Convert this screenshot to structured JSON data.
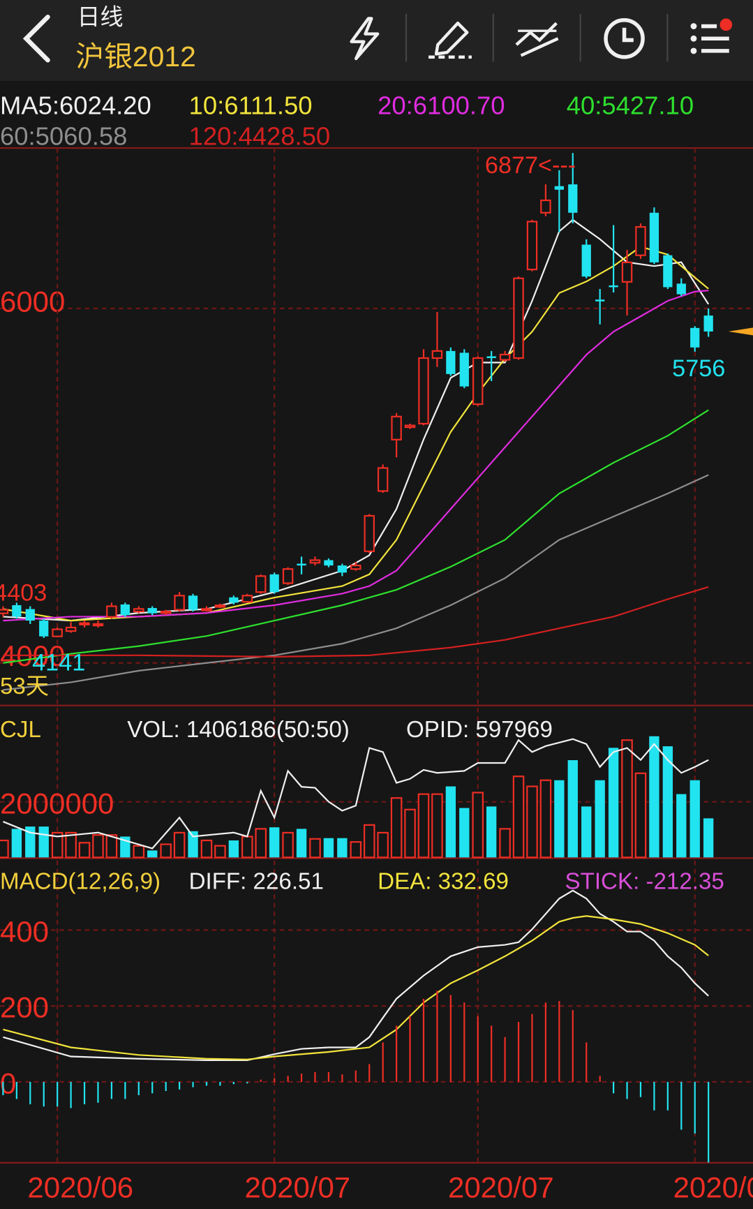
{
  "header": {
    "period": "日线",
    "symbol": "沪银2012"
  },
  "chart_data": [
    {
      "type": "candlestick",
      "categories": [
        null,
        null,
        null,
        null,
        "2020/06",
        null,
        null,
        null,
        null,
        null,
        null,
        null,
        null,
        null,
        null,
        null,
        null,
        null,
        null,
        null,
        "2020/07",
        null,
        null,
        null,
        null,
        null,
        null,
        null,
        null,
        null,
        null,
        null,
        null,
        null,
        null,
        "2020/07",
        null,
        null,
        null,
        null,
        null,
        null,
        null,
        null,
        null,
        null,
        null,
        null,
        null,
        null,
        null,
        "2020/0",
        null
      ],
      "open": [
        4280,
        4326,
        4304,
        4239,
        4150,
        4180,
        4220,
        4215,
        4260,
        4330,
        4290,
        4310,
        4285,
        4300,
        4380,
        4300,
        4320,
        4370,
        4345,
        4400,
        4500,
        4450,
        4560,
        4565,
        4580,
        4550,
        4530,
        4630,
        4970,
        5260,
        5330,
        5350,
        5720,
        5760,
        5750,
        5460,
        5730,
        5710,
        5720,
        6220,
        6540,
        6690,
        6700,
        6360,
        6050,
        6130,
        6150,
        6300,
        6540,
        6300,
        6140,
        5890,
        5960
      ],
      "close": [
        4300,
        4261,
        4239,
        4150,
        4190,
        4200,
        4225,
        4220,
        4320,
        4270,
        4305,
        4280,
        4290,
        4380,
        4300,
        4305,
        4325,
        4340,
        4380,
        4490,
        4400,
        4530,
        4550,
        4580,
        4550,
        4510,
        4550,
        4830,
        5100,
        5390,
        5340,
        5720,
        5760,
        5630,
        5560,
        5720,
        5720,
        5740,
        6170,
        6490,
        6610,
        6670,
        6540,
        6180,
        6040,
        6120,
        6260,
        6460,
        6260,
        6120,
        6080,
        5780,
        5870
      ],
      "high": [
        4320,
        4340,
        4320,
        4250,
        4200,
        4230,
        4240,
        4240,
        4340,
        4340,
        4320,
        4320,
        4300,
        4400,
        4390,
        4320,
        4335,
        4380,
        4390,
        4500,
        4510,
        4540,
        4600,
        4600,
        4590,
        4560,
        4570,
        4840,
        5120,
        5410,
        5350,
        5770,
        5980,
        5780,
        5770,
        5730,
        5760,
        5760,
        6180,
        6500,
        6700,
        6780,
        6877,
        6390,
        6110,
        6470,
        6330,
        6480,
        6570,
        6310,
        6170,
        5900,
        6000
      ],
      "low": [
        4260,
        4250,
        4220,
        4141,
        4145,
        4170,
        4200,
        4200,
        4250,
        4260,
        4280,
        4270,
        4270,
        4290,
        4290,
        4290,
        4310,
        4330,
        4340,
        4390,
        4390,
        4440,
        4500,
        4550,
        4540,
        4490,
        4520,
        4620,
        4960,
        5160,
        5320,
        5340,
        5670,
        5620,
        5550,
        5450,
        5590,
        5700,
        5710,
        6210,
        6520,
        6430,
        6480,
        6170,
        5910,
        6090,
        5960,
        6280,
        6250,
        6110,
        6070,
        5756,
        5840
      ],
      "up_color": "#ee2e24",
      "down_color": "#22e3f0",
      "marker_color": "#f5a623",
      "ylim": [
        3760,
        6905
      ],
      "yticks": [
        4000,
        6000
      ],
      "grid": true,
      "period": "53天",
      "series": [
        {
          "name": "MA5:6024.20",
          "color": "#f0f0f0",
          "x": [
            0,
            5,
            10,
            15,
            20,
            25,
            27,
            29,
            31,
            33,
            35,
            37,
            39,
            41,
            42,
            44,
            46,
            48,
            50,
            52
          ],
          "values": [
            4261,
            4239,
            4282,
            4304,
            4400,
            4521,
            4608,
            4869,
            5261,
            5609,
            5695,
            5695,
            6043,
            6435,
            6500,
            6391,
            6261,
            6239,
            6261,
            6024
          ]
        },
        {
          "name": "10:6111.50",
          "color": "#f2e43c",
          "x": [
            0,
            5,
            10,
            15,
            20,
            25,
            27,
            29,
            31,
            33,
            35,
            37,
            39,
            41,
            43,
            45,
            47,
            49,
            51,
            52
          ],
          "values": [
            4304,
            4239,
            4261,
            4282,
            4369,
            4434,
            4500,
            4695,
            5000,
            5304,
            5522,
            5717,
            5869,
            6087,
            6152,
            6239,
            6348,
            6304,
            6174,
            6111
          ]
        },
        {
          "name": "20:6100.70",
          "color": "#e02ce0",
          "x": [
            0,
            5,
            10,
            15,
            20,
            25,
            27,
            29,
            31,
            33,
            35,
            37,
            39,
            41,
            43,
            45,
            47,
            49,
            51,
            52
          ],
          "values": [
            4239,
            4261,
            4261,
            4282,
            4326,
            4391,
            4434,
            4521,
            4695,
            4869,
            5043,
            5217,
            5391,
            5565,
            5739,
            5869,
            5956,
            6043,
            6095,
            6101
          ]
        },
        {
          "name": "40:5427.10",
          "color": "#2ee02e",
          "x": [
            0,
            5,
            10,
            15,
            20,
            25,
            29,
            33,
            37,
            41,
            45,
            49,
            52
          ],
          "values": [
            4000,
            4052,
            4095,
            4152,
            4239,
            4326,
            4413,
            4543,
            4695,
            4956,
            5130,
            5282,
            5427
          ]
        },
        {
          "name": "60:5060.58",
          "color": "#8e8e8e",
          "x": [
            0,
            5,
            10,
            15,
            20,
            25,
            29,
            33,
            37,
            41,
            45,
            49,
            52
          ],
          "values": [
            3848,
            3891,
            3956,
            4000,
            4043,
            4109,
            4196,
            4326,
            4478,
            4695,
            4826,
            4956,
            5061
          ]
        },
        {
          "name": "120:4428.50",
          "color": "#d42020",
          "x": [
            0,
            10,
            20,
            27,
            33,
            37,
            41,
            45,
            49,
            52
          ],
          "values": [
            4043,
            4043,
            4035,
            4043,
            4087,
            4130,
            4196,
            4261,
            4360,
            4429
          ]
        }
      ],
      "annotations": [
        {
          "text": "6877<---",
          "value": 6877,
          "index": 42,
          "color": "#ee2e24"
        },
        {
          "text": "5756",
          "value": 5756,
          "index": 51,
          "color": "#22e3f0"
        },
        {
          "text": "4141",
          "value": 4141,
          "index": 3,
          "color": "#22e3f0"
        },
        {
          "text": "4403",
          "value": 4403,
          "color": "#ee2e24"
        }
      ]
    },
    {
      "type": "bar",
      "title": "CJL",
      "title_color": "#f2d03c",
      "ylim": [
        0,
        5190000
      ],
      "yticks": [
        2000000
      ],
      "y2lim": [
        500000,
        645000
      ],
      "grid": true,
      "series": [
        {
          "name": "VOL: 1406186(50:50)",
          "color": "#f0f0f0",
          "values": [
            611000,
            1028000,
            1111000,
            1111000,
            889000,
            889000,
            528000,
            806000,
            806000,
            750000,
            417000,
            250000,
            472000,
            889000,
            944000,
            611000,
            417000,
            611000,
            750000,
            1028000,
            1083000,
            889000,
            1028000,
            667000,
            694000,
            694000,
            556000,
            1167000,
            889000,
            2139000,
            1722000,
            2278000,
            2278000,
            2556000,
            1778000,
            2333000,
            1833000,
            1028000,
            2917000,
            2556000,
            2778000,
            2778000,
            3500000,
            1833000,
            2778000,
            3944000,
            4222000,
            3028000,
            4361000,
            4000000,
            2278000,
            2778000,
            1406186
          ]
        },
        {
          "name": "OPID: 597969",
          "color": "#f0f0f0",
          "axis": "y2",
          "x": [
            0,
            2,
            4,
            7,
            9,
            11,
            13,
            14,
            17,
            18,
            19,
            20,
            21,
            22,
            23,
            24,
            25,
            26,
            27,
            28,
            29,
            30,
            31,
            32,
            34,
            35,
            37,
            38,
            39,
            40,
            42,
            43,
            44,
            45,
            46,
            47,
            48,
            49,
            50,
            51,
            52
          ],
          "values": [
            536000,
            525000,
            521000,
            525000,
            517000,
            509000,
            540000,
            521000,
            525000,
            521000,
            567000,
            540000,
            587000,
            571000,
            570000,
            556000,
            547000,
            552000,
            610000,
            606000,
            575000,
            579000,
            588000,
            585000,
            587000,
            595000,
            595000,
            618000,
            606000,
            612000,
            619000,
            614000,
            591000,
            606000,
            610000,
            598000,
            614000,
            598000,
            585000,
            591000,
            597969
          ]
        }
      ]
    },
    {
      "type": "macd",
      "title": "MACD(12,26,9)",
      "title_color": "#f2d03c",
      "ylim": [
        -215,
        565
      ],
      "yticks": [
        0,
        200,
        400
      ],
      "grid": true,
      "up_color": "#ee2e24",
      "down_color": "#22e3f0",
      "series": [
        {
          "name": "DIFF: 226.51",
          "color": "#f0f0f0",
          "x": [
            0,
            5,
            10,
            15,
            18,
            20,
            22,
            24,
            26,
            27,
            28,
            29,
            31,
            33,
            35,
            37,
            38,
            39,
            41,
            42,
            43,
            44,
            45,
            46,
            47,
            48,
            49,
            50,
            51,
            52
          ],
          "values": [
            118,
            67,
            61,
            57,
            57,
            73,
            87,
            91,
            91,
            118,
            169,
            219,
            280,
            331,
            355,
            361,
            368,
            402,
            483,
            504,
            483,
            443,
            422,
            396,
            396,
            372,
            331,
            301,
            260,
            226.51
          ]
        },
        {
          "name": "DEA: 332.69",
          "color": "#f2e43c",
          "x": [
            0,
            5,
            10,
            15,
            18,
            20,
            24,
            26,
            27,
            29,
            31,
            33,
            35,
            37,
            39,
            41,
            42,
            43,
            45,
            47,
            49,
            51,
            52
          ],
          "values": [
            138,
            91,
            71,
            61,
            59,
            67,
            79,
            87,
            91,
            138,
            209,
            260,
            294,
            331,
            372,
            422,
            432,
            437,
            428,
            416,
            392,
            361,
            332.69
          ]
        },
        {
          "name": "STICK: -212.35",
          "color": "#d94fd8",
          "values": [
            -35,
            -45,
            -59,
            -65,
            -65,
            -69,
            -59,
            -55,
            -45,
            -45,
            -35,
            -30,
            -24,
            -20,
            -14,
            -10,
            -10,
            -6,
            -4,
            6,
            10,
            16,
            22,
            26,
            26,
            20,
            30,
            47,
            104,
            148,
            173,
            219,
            240,
            229,
            209,
            173,
            148,
            118,
            158,
            179,
            209,
            213,
            189,
            104,
            16,
            -30,
            -45,
            -40,
            -75,
            -75,
            -126,
            -136,
            -212.35
          ]
        }
      ]
    }
  ]
}
